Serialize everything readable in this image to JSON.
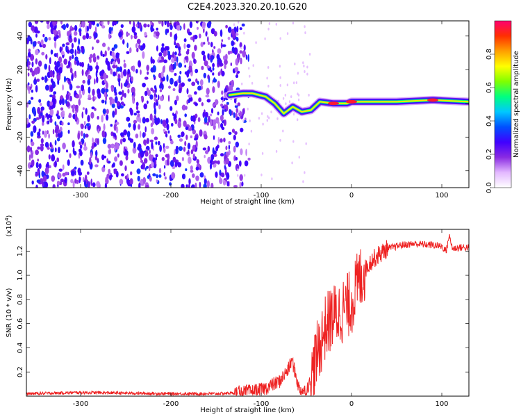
{
  "title": "C2E4.2023.320.20.10.G20",
  "chart_data": [
    {
      "type": "heatmap",
      "xlabel": "Height of straight line (km)",
      "ylabel": "Frequency (Hz)",
      "xlim": [
        -360,
        130
      ],
      "ylim": [
        -50,
        49
      ],
      "xticks": [
        -300,
        -200,
        -100,
        0,
        100
      ],
      "yticks": [
        -40,
        -20,
        0,
        20,
        40
      ],
      "colorbar": {
        "label": "Normalized spectral amplitude",
        "range": [
          0,
          1
        ],
        "ticks": [
          0.0,
          0.2,
          0.4,
          0.6,
          0.8
        ],
        "tick_labels": [
          "0.0",
          "0.2",
          "0.4",
          "0.6",
          "0.8"
        ],
        "colors": [
          "#ffffff",
          "#e3b8ff",
          "#8a2be2",
          "#4000ff",
          "#0050ff",
          "#00c8ff",
          "#00ff80",
          "#80ff00",
          "#ffff00",
          "#ffa000",
          "#ff3000",
          "#ff0070"
        ]
      },
      "noise_region": {
        "x_range": [
          -360,
          -130
        ],
        "level": 0.3
      },
      "signal_trace": [
        {
          "x": -135,
          "y": 5
        },
        {
          "x": -120,
          "y": 6
        },
        {
          "x": -110,
          "y": 6
        },
        {
          "x": -95,
          "y": 4
        },
        {
          "x": -85,
          "y": 0
        },
        {
          "x": -75,
          "y": -6
        },
        {
          "x": -65,
          "y": -2
        },
        {
          "x": -55,
          "y": -5
        },
        {
          "x": -45,
          "y": -4
        },
        {
          "x": -35,
          "y": 1
        },
        {
          "x": -20,
          "y": 0
        },
        {
          "x": -5,
          "y": 0
        },
        {
          "x": 0,
          "y": 1
        },
        {
          "x": 50,
          "y": 1
        },
        {
          "x": 90,
          "y": 2
        },
        {
          "x": 130,
          "y": 1
        }
      ]
    },
    {
      "type": "line",
      "xlabel": "Height of straight line (km)",
      "ylabel": "SNR (10 * v/v)",
      "scale_note": "(x10",
      "scale_exp": "4",
      "scale_close": ")",
      "xlim": [
        -360,
        130
      ],
      "ylim": [
        0,
        1.38
      ],
      "xticks": [
        -300,
        -200,
        -100,
        0,
        100
      ],
      "yticks": [
        0.2,
        0.4,
        0.6,
        0.8,
        1.0,
        1.2
      ],
      "ytick_labels": [
        "0.2",
        "0.4",
        "0.6",
        "0.8",
        "1.0",
        "1.2"
      ],
      "color": "#ee2222",
      "series": [
        {
          "x": [
            -360,
            -300,
            -250,
            -200,
            -150,
            -120,
            -100,
            -80,
            -70,
            -66,
            -62,
            -58,
            -52,
            -45,
            -38,
            -30,
            -22,
            -15,
            -8,
            0,
            8,
            15,
            22,
            30,
            40,
            55,
            70,
            90,
            100,
            105,
            108,
            112,
            120,
            130
          ],
          "y": [
            0.02,
            0.03,
            0.025,
            0.02,
            0.02,
            0.03,
            0.05,
            0.12,
            0.22,
            0.3,
            0.18,
            0.06,
            0.04,
            0.12,
            0.35,
            0.55,
            0.65,
            0.68,
            0.72,
            0.78,
            0.95,
            1.05,
            1.12,
            1.17,
            1.22,
            1.25,
            1.26,
            1.25,
            1.24,
            1.2,
            1.33,
            1.22,
            1.23,
            1.23
          ]
        }
      ]
    }
  ]
}
